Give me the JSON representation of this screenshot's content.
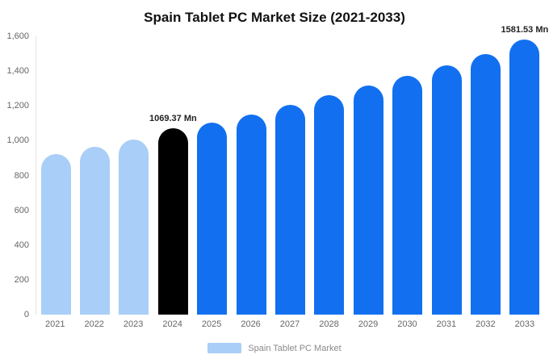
{
  "chart_data": {
    "type": "bar",
    "title": "Spain Tablet PC Market Size (2021-2033)",
    "categories": [
      "2021",
      "2022",
      "2023",
      "2024",
      "2025",
      "2026",
      "2027",
      "2028",
      "2029",
      "2030",
      "2031",
      "2032",
      "2033"
    ],
    "values": [
      925,
      963,
      1008,
      1069.37,
      1105,
      1150,
      1206,
      1262,
      1318,
      1375,
      1435,
      1500,
      1581.53
    ],
    "ylim": [
      0,
      1600
    ],
    "y_ticks": [
      0,
      200,
      400,
      600,
      800,
      1000,
      1200,
      1400,
      1600
    ],
    "y_tick_labels": [
      "0",
      "200",
      "400",
      "600",
      "800",
      "1,000",
      "1,200",
      "1,400",
      "1,600"
    ],
    "grid": false,
    "legend": [
      "Spain Tablet PC Market"
    ],
    "legend_position": "bottom",
    "annotations": [
      {
        "category": "2024",
        "text": "1069.37 Mn"
      },
      {
        "category": "2033",
        "text": "1581.53 Mn"
      }
    ],
    "colors": {
      "historical": "#A9CEF7",
      "highlight": "#000000",
      "forecast": "#1270F0",
      "legend_swatch": "#A9CEF7"
    },
    "bar_color_keys": [
      "historical",
      "historical",
      "historical",
      "highlight",
      "forecast",
      "forecast",
      "forecast",
      "forecast",
      "forecast",
      "forecast",
      "forecast",
      "forecast",
      "forecast"
    ]
  }
}
